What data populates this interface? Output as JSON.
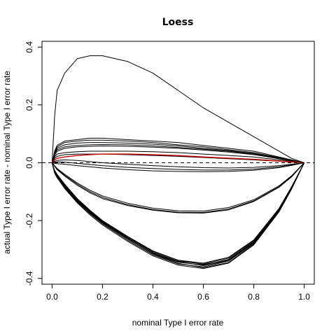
{
  "chart_data": {
    "type": "line",
    "title": "Loess",
    "xlabel": "nominal Type I error rate",
    "ylabel": "actual Type I error rate - nominal Type I error rate",
    "xlim": [
      -0.04,
      1.04
    ],
    "ylim": [
      -0.42,
      0.42
    ],
    "x_ticks": [
      0.0,
      0.2,
      0.4,
      0.6,
      0.8,
      1.0
    ],
    "x_tick_labels": [
      "0.0",
      "0.2",
      "0.4",
      "0.6",
      "0.8",
      "1.0"
    ],
    "y_ticks": [
      -0.4,
      -0.2,
      0.0,
      0.2,
      0.4
    ],
    "y_tick_labels": [
      "-0.4",
      "-0.2",
      "0.0",
      "0.2",
      "0.4"
    ],
    "grid": false,
    "reference_line": {
      "y": 0.0,
      "style": "dashed",
      "color": "#000000"
    },
    "line_color": "#000000",
    "highlight_color": "#cc0000",
    "x": [
      0.0,
      0.01,
      0.02,
      0.05,
      0.1,
      0.15,
      0.2,
      0.3,
      0.4,
      0.5,
      0.6,
      0.7,
      0.8,
      0.9,
      0.95,
      1.0
    ],
    "series": [
      {
        "values": [
          0.0,
          0.16,
          0.25,
          0.31,
          0.36,
          0.37,
          0.37,
          0.35,
          0.31,
          0.25,
          0.19,
          0.14,
          0.09,
          0.04,
          0.015,
          0.0
        ]
      },
      {
        "values": [
          0.0,
          0.04,
          0.06,
          0.075,
          0.08,
          0.085,
          0.085,
          0.08,
          0.075,
          0.07,
          0.06,
          0.05,
          0.04,
          0.02,
          0.01,
          0.0
        ]
      },
      {
        "values": [
          0.0,
          0.035,
          0.055,
          0.07,
          0.075,
          0.078,
          0.078,
          0.075,
          0.07,
          0.062,
          0.055,
          0.045,
          0.035,
          0.018,
          0.009,
          0.0
        ]
      },
      {
        "values": [
          0.0,
          0.03,
          0.05,
          0.062,
          0.068,
          0.07,
          0.07,
          0.068,
          0.064,
          0.058,
          0.05,
          0.042,
          0.032,
          0.016,
          0.008,
          0.0
        ]
      },
      {
        "values": [
          0.0,
          0.03,
          0.045,
          0.055,
          0.06,
          0.062,
          0.063,
          0.062,
          0.058,
          0.053,
          0.047,
          0.04,
          0.03,
          0.015,
          0.007,
          0.0
        ]
      },
      {
        "values": [
          0.0,
          0.025,
          0.04,
          0.05,
          0.055,
          0.057,
          0.058,
          0.057,
          0.054,
          0.05,
          0.044,
          0.037,
          0.028,
          0.014,
          0.007,
          0.0
        ]
      },
      {
        "values": [
          0.0,
          0.02,
          0.03,
          0.035,
          0.038,
          0.04,
          0.04,
          0.04,
          0.038,
          0.035,
          0.03,
          0.025,
          0.02,
          0.01,
          0.005,
          0.0
        ]
      },
      {
        "values": [
          0.0,
          0.015,
          0.022,
          0.028,
          0.03,
          0.03,
          0.03,
          0.028,
          0.025,
          0.022,
          0.018,
          0.014,
          0.01,
          0.005,
          0.002,
          0.0
        ]
      },
      {
        "values": [
          0.0,
          0.005,
          0.008,
          0.01,
          0.008,
          0.004,
          0.0,
          -0.005,
          -0.01,
          -0.014,
          -0.017,
          -0.018,
          -0.016,
          -0.01,
          -0.005,
          0.0
        ]
      },
      {
        "values": [
          0.0,
          0.002,
          0.003,
          0.002,
          -0.002,
          -0.006,
          -0.01,
          -0.016,
          -0.02,
          -0.023,
          -0.025,
          -0.025,
          -0.022,
          -0.014,
          -0.007,
          0.0
        ]
      },
      {
        "values": [
          0.0,
          -0.002,
          -0.003,
          -0.005,
          -0.01,
          -0.014,
          -0.018,
          -0.024,
          -0.028,
          -0.03,
          -0.031,
          -0.03,
          -0.026,
          -0.017,
          -0.009,
          0.0
        ]
      },
      {
        "values": [
          0.0,
          -0.01,
          -0.02,
          -0.04,
          -0.07,
          -0.095,
          -0.115,
          -0.14,
          -0.157,
          -0.166,
          -0.167,
          -0.155,
          -0.128,
          -0.08,
          -0.045,
          0.0
        ]
      },
      {
        "values": [
          0.0,
          -0.011,
          -0.022,
          -0.043,
          -0.074,
          -0.1,
          -0.12,
          -0.145,
          -0.162,
          -0.171,
          -0.172,
          -0.16,
          -0.132,
          -0.083,
          -0.047,
          0.0
        ]
      },
      {
        "values": [
          0.0,
          -0.012,
          -0.024,
          -0.046,
          -0.078,
          -0.104,
          -0.124,
          -0.148,
          -0.164,
          -0.173,
          -0.174,
          -0.163,
          -0.134,
          -0.085,
          -0.049,
          0.0
        ]
      },
      {
        "values": [
          0.0,
          -0.03,
          -0.045,
          -0.08,
          -0.13,
          -0.17,
          -0.205,
          -0.26,
          -0.31,
          -0.34,
          -0.35,
          -0.33,
          -0.27,
          -0.16,
          -0.085,
          0.0
        ]
      },
      {
        "values": [
          0.0,
          -0.028,
          -0.043,
          -0.077,
          -0.127,
          -0.167,
          -0.202,
          -0.257,
          -0.307,
          -0.337,
          -0.347,
          -0.327,
          -0.267,
          -0.158,
          -0.083,
          0.0
        ]
      },
      {
        "values": [
          0.0,
          -0.032,
          -0.047,
          -0.083,
          -0.133,
          -0.173,
          -0.208,
          -0.264,
          -0.314,
          -0.344,
          -0.354,
          -0.334,
          -0.273,
          -0.163,
          -0.087,
          0.0
        ]
      },
      {
        "values": [
          0.0,
          -0.026,
          -0.04,
          -0.074,
          -0.124,
          -0.164,
          -0.2,
          -0.255,
          -0.305,
          -0.337,
          -0.352,
          -0.337,
          -0.275,
          -0.165,
          -0.088,
          0.0
        ]
      },
      {
        "values": [
          0.0,
          -0.034,
          -0.05,
          -0.086,
          -0.136,
          -0.176,
          -0.211,
          -0.268,
          -0.318,
          -0.35,
          -0.36,
          -0.34,
          -0.278,
          -0.166,
          -0.089,
          0.0
        ]
      },
      {
        "values": [
          0.0,
          -0.03,
          -0.046,
          -0.081,
          -0.131,
          -0.171,
          -0.206,
          -0.263,
          -0.315,
          -0.348,
          -0.363,
          -0.345,
          -0.281,
          -0.168,
          -0.09,
          0.0
        ]
      },
      {
        "values": [
          0.0,
          -0.036,
          -0.052,
          -0.089,
          -0.139,
          -0.18,
          -0.215,
          -0.272,
          -0.322,
          -0.354,
          -0.366,
          -0.347,
          -0.284,
          -0.17,
          -0.091,
          0.0
        ]
      },
      {
        "values": [
          0.0,
          -0.029,
          -0.044,
          -0.079,
          -0.129,
          -0.169,
          -0.204,
          -0.26,
          -0.311,
          -0.342,
          -0.356,
          -0.339,
          -0.276,
          -0.165,
          -0.087,
          0.0
        ]
      },
      {
        "values": [
          0.0,
          0.01,
          0.015,
          0.02,
          0.025,
          0.028,
          0.03,
          0.03,
          0.028,
          0.025,
          0.02,
          0.016,
          0.012,
          0.006,
          0.003,
          0.0
        ],
        "highlight": true
      }
    ]
  }
}
